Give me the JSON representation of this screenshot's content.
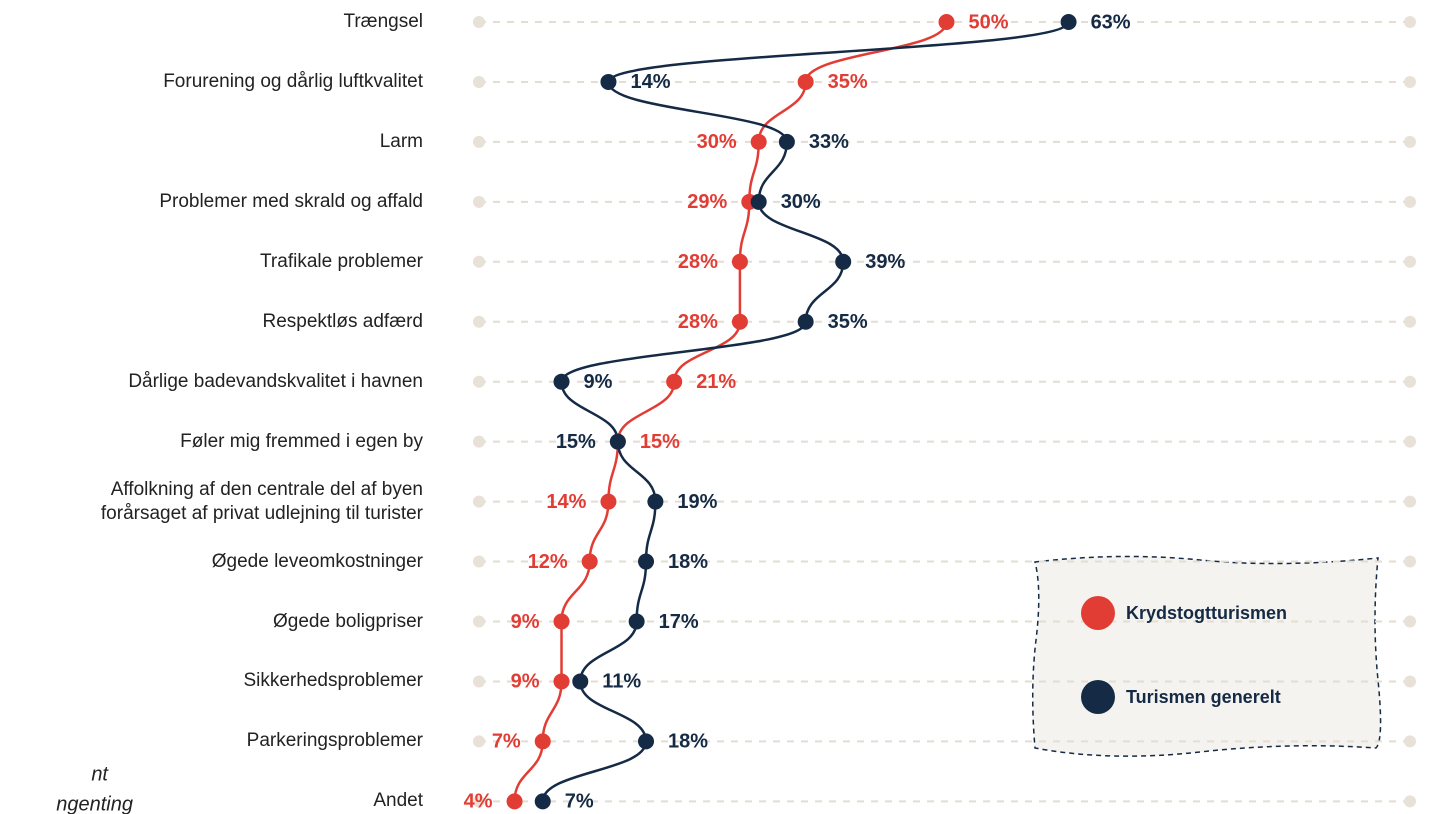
{
  "chart_data": {
    "type": "dot-line",
    "categories": [
      "Trængsel",
      "Forurening og dårlig luftkvalitet",
      "Larm",
      "Problemer med skrald og affald",
      "Trafikale problemer",
      "Respektløs adfærd",
      "Dårlige badevandskvalitet i havnen",
      "Føler mig fremmed i egen by",
      "Affolkning af den centrale del af byen\nforårsaget af privat udlejning til turister",
      "Øgede leveomkostninger",
      "Øgede boligpriser",
      "Sikkerhedsproblemer",
      "Parkeringsproblemer",
      "Andet"
    ],
    "series": [
      {
        "name": "Krydstogtturismen",
        "color": "#e23d35",
        "values": [
          50,
          35,
          30,
          29,
          28,
          28,
          21,
          15,
          14,
          12,
          9,
          9,
          7,
          4
        ],
        "value_labels": [
          "50%",
          "35%",
          "30%",
          "29%",
          "28%",
          "28%",
          "21%",
          "15%",
          "14%",
          "12%",
          "9%",
          "9%",
          "7%",
          "4%"
        ]
      },
      {
        "name": "Turismen generelt",
        "color": "#152a45",
        "values": [
          63,
          14,
          33,
          30,
          39,
          35,
          9,
          15,
          19,
          18,
          17,
          11,
          18,
          7
        ],
        "value_labels": [
          "63%",
          "14%",
          "33%",
          "30%",
          "39%",
          "35%",
          "9%",
          "15%",
          "19%",
          "18%",
          "17%",
          "11%",
          "18%",
          "7%"
        ]
      }
    ],
    "xlim": [
      0,
      100
    ],
    "annotations": [
      "nt",
      "ngenting"
    ]
  }
}
